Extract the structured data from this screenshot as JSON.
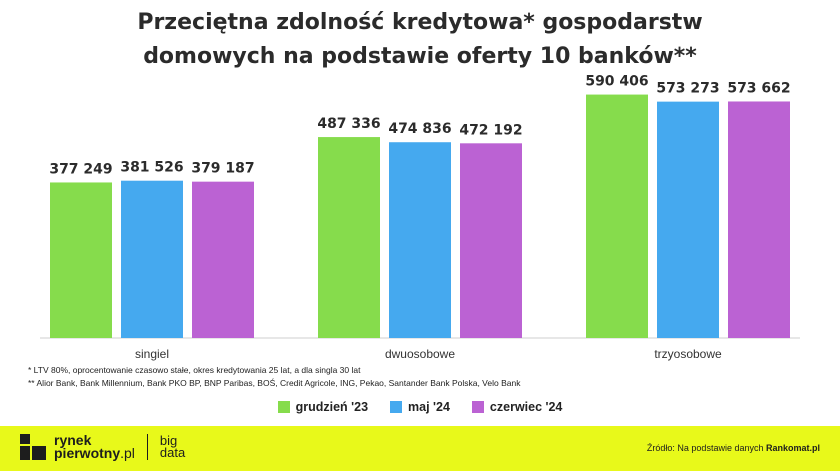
{
  "chart_data": {
    "type": "bar",
    "title_lines": [
      "Przeciętna zdolność kredytowa* gospodarstw",
      "domowych na podstawie oferty 10 banków**"
    ],
    "categories": [
      "singiel",
      "dwuosobowe",
      "trzyosobowe"
    ],
    "series": [
      {
        "name": "grudzień '23",
        "color": "#86dc4c",
        "values": [
          377249,
          487336,
          590406
        ],
        "labels": [
          "377 249",
          "487 336",
          "590 406"
        ]
      },
      {
        "name": "maj '24",
        "color": "#45a9ef",
        "values": [
          381526,
          474836,
          573273
        ],
        "labels": [
          "381 526",
          "474 836",
          "573 273"
        ]
      },
      {
        "name": "czerwiec '24",
        "color": "#bb62d3",
        "values": [
          379187,
          472192,
          573662
        ],
        "labels": [
          "379 187",
          "472 192",
          "573 662"
        ]
      }
    ],
    "ylim": [
      0,
      650000
    ],
    "grid": false,
    "legend_position": "bottom-center"
  },
  "notes": [
    "* LTV 80%, oprocentowanie czasowo stałe, okres kredytowania 25 lat, a dla singla 30 lat",
    "** Alior Bank, Bank Millennium, Bank PKO BP, BNP Paribas, BOŚ,  Credit Agricole, ING, Pekao, Santander Bank Polska, Velo Bank"
  ],
  "footer": {
    "brand_line1": "rynek",
    "brand_line2": "pierwotny",
    "brand_suffix": ".pl",
    "bigdata_line1": "big",
    "bigdata_line2": "data",
    "source_prefix": "Źródło: Na podstawie danych ",
    "source_name": "Rankomat.pl"
  }
}
